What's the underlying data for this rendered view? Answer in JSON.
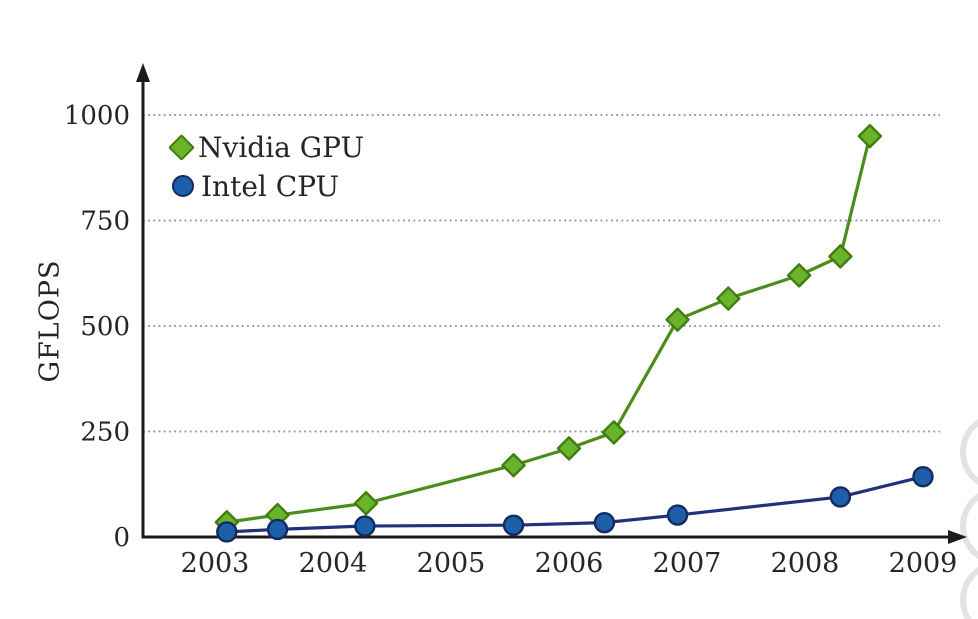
{
  "figure": {
    "background": "#ffffff"
  },
  "chart_data": {
    "type": "line",
    "title": "",
    "xlabel": "",
    "ylabel": "GFLOPS",
    "x_tick_labels": [
      "2003",
      "2004",
      "2005",
      "2006",
      "2007",
      "2008",
      "2009"
    ],
    "x_ticks": [
      2003,
      2004,
      2005,
      2006,
      2007,
      2008,
      2009
    ],
    "y_tick_labels": [
      "0",
      "250",
      "500",
      "750",
      "1000"
    ],
    "y_ticks": [
      0,
      250,
      500,
      750,
      1000
    ],
    "xlim": [
      2002.4,
      2009.35
    ],
    "ylim": [
      0,
      1000
    ],
    "grid": "horizontal dotted lines at 250, 500, 750, 1000",
    "legend_position": "top-left inside plot",
    "series": [
      {
        "name": "Nvidia GPU",
        "marker": "diamond",
        "line_color": "#4c8c1d",
        "marker_fill": "#69b42a",
        "marker_stroke": "#417d10",
        "x": [
          2003.1,
          2003.53,
          2004.28,
          2005.53,
          2006.0,
          2006.38,
          2006.92,
          2007.35,
          2007.95,
          2008.3,
          2008.55
        ],
        "values": [
          35,
          52,
          80,
          170,
          210,
          248,
          515,
          565,
          620,
          665,
          950
        ]
      },
      {
        "name": "Intel CPU",
        "marker": "circle",
        "line_color": "#22307d",
        "marker_fill": "#1d5ea8",
        "marker_stroke": "#142a60",
        "x": [
          2003.1,
          2003.53,
          2004.27,
          2005.53,
          2006.3,
          2006.92,
          2008.3,
          2009.0
        ],
        "values": [
          12,
          18,
          26,
          28,
          34,
          52,
          95,
          143
        ]
      }
    ]
  },
  "style": {
    "axis_color": "#1c1c1c",
    "grid_color": "#8c8c8c",
    "text_color": "#262626"
  },
  "decoration": {
    "edge_circles_color": "#e3e3e3",
    "edge_circles_count": 3
  }
}
